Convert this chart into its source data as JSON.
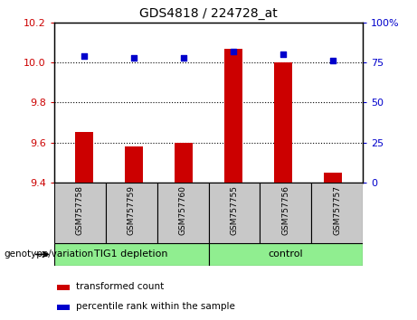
{
  "title": "GDS4818 / 224728_at",
  "samples": [
    "GSM757758",
    "GSM757759",
    "GSM757760",
    "GSM757755",
    "GSM757756",
    "GSM757757"
  ],
  "bar_values": [
    9.65,
    9.58,
    9.6,
    10.07,
    10.0,
    9.45
  ],
  "dot_values": [
    79,
    78,
    78,
    82,
    80,
    76
  ],
  "ylim_left": [
    9.4,
    10.2
  ],
  "ylim_right": [
    0,
    100
  ],
  "yticks_left": [
    9.4,
    9.6,
    9.8,
    10.0,
    10.2
  ],
  "yticks_right": [
    0,
    25,
    50,
    75,
    100
  ],
  "bar_color": "#CC0000",
  "dot_color": "#0000CC",
  "bar_width": 0.35,
  "axis_left_color": "#CC0000",
  "axis_right_color": "#0000CC",
  "legend_items": [
    "transformed count",
    "percentile rank within the sample"
  ],
  "xlabel": "genotype/variation",
  "background_label": "#C8C8C8",
  "background_group": "#90EE90",
  "group_info": [
    [
      0,
      2,
      "TIG1 depletion"
    ],
    [
      3,
      5,
      "control"
    ]
  ]
}
